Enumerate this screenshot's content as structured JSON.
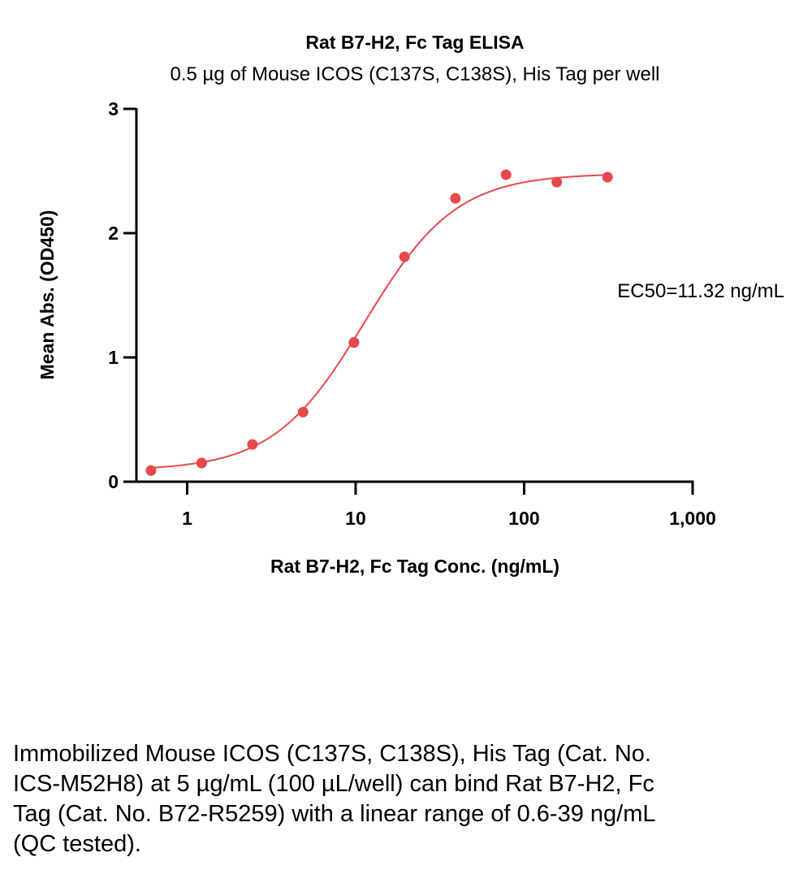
{
  "chart_data": {
    "type": "scatter",
    "title": "Rat B7-H2, Fc Tag ELISA",
    "subtitle": "0.5 µg of Mouse ICOS (C137S, C138S), His Tag per well",
    "xlabel": "Rat B7-H2, Fc Tag Conc. (ng/mL)",
    "ylabel": "Mean Abs. (OD450)",
    "xscale": "log",
    "xlim": [
      0.5,
      1000
    ],
    "ylim": [
      0,
      3
    ],
    "x_ticks": [
      1,
      10,
      100,
      1000
    ],
    "x_tick_labels": [
      "1",
      "10",
      "100",
      "1,000"
    ],
    "y_ticks": [
      0,
      1,
      2,
      3
    ],
    "y_tick_labels": [
      "0",
      "1",
      "2",
      "3"
    ],
    "grid": false,
    "legend": "none",
    "color": "#e8484b",
    "annotation": "EC50=11.32 ng/mL",
    "series": [
      {
        "x": [
          0.61,
          1.22,
          2.44,
          4.88,
          9.77,
          19.5,
          39.1,
          78.1,
          156.3,
          312.5
        ],
        "y": [
          0.09,
          0.15,
          0.3,
          0.56,
          1.12,
          1.81,
          2.28,
          2.47,
          2.41,
          2.45
        ]
      }
    ],
    "fit_curve": {
      "model": "4PL",
      "bottom": 0.09,
      "top": 2.48,
      "ec50": 11.32,
      "hill": 1.6
    }
  },
  "caption": "Immobilized Mouse ICOS (C137S, C138S), His Tag (Cat. No. ICS-M52H8) at 5 µg/mL (100 µL/well) can bind Rat B7-H2, Fc Tag (Cat. No. B72-R5259) with a linear range of 0.6-39 ng/mL (QC tested)."
}
